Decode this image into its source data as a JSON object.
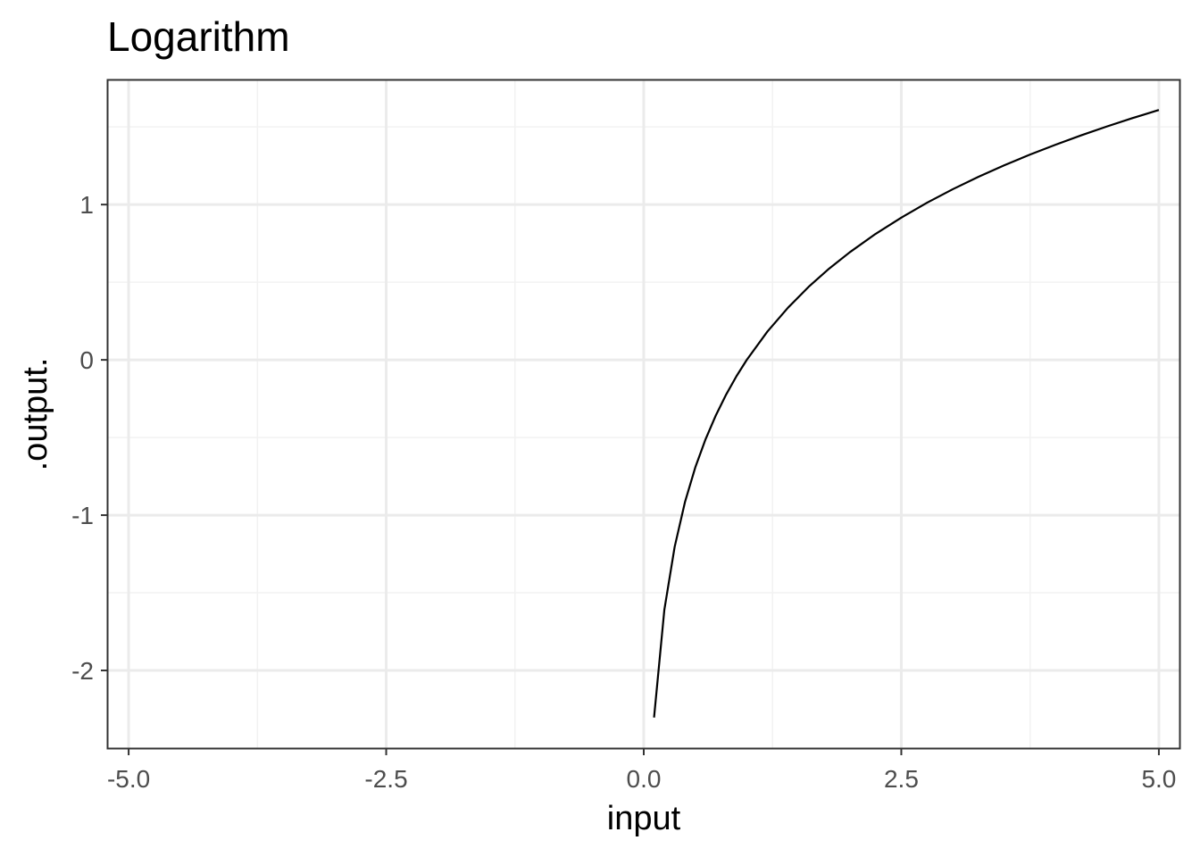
{
  "chart_data": {
    "type": "line",
    "title": "Logarithm",
    "xlabel": "input",
    "ylabel": ".output.",
    "xlim": [
      -5.2,
      5.2
    ],
    "ylim": [
      -2.5,
      1.8
    ],
    "x_ticks": [
      -5.0,
      -2.5,
      0.0,
      2.5,
      5.0
    ],
    "x_tick_labels": [
      "-5.0",
      "-2.5",
      "0.0",
      "2.5",
      "5.0"
    ],
    "x_minor_ticks": [
      -3.75,
      -1.25,
      1.25,
      3.75
    ],
    "y_ticks": [
      -2,
      -1,
      0,
      1
    ],
    "y_tick_labels": [
      "-2",
      "-1",
      "0",
      "1"
    ],
    "y_minor_ticks": [
      -1.5,
      -0.5,
      0.5,
      1.5
    ],
    "grid": true,
    "legend": "none",
    "series": [
      {
        "color": "#000000",
        "x": [
          0.1,
          0.2,
          0.3,
          0.4,
          0.5,
          0.6,
          0.7,
          0.8,
          0.9,
          1.0,
          1.2,
          1.4,
          1.6,
          1.8,
          2.0,
          2.25,
          2.5,
          2.75,
          3.0,
          3.25,
          3.5,
          3.75,
          4.0,
          4.25,
          4.5,
          4.75,
          5.0
        ],
        "y": [
          -2.303,
          -1.609,
          -1.204,
          -0.916,
          -0.693,
          -0.511,
          -0.357,
          -0.223,
          -0.105,
          0.0,
          0.182,
          0.336,
          0.47,
          0.588,
          0.693,
          0.811,
          0.916,
          1.012,
          1.099,
          1.179,
          1.253,
          1.322,
          1.386,
          1.447,
          1.504,
          1.558,
          1.609
        ]
      }
    ]
  },
  "colors": {
    "panel_border": "#333333",
    "grid_major": "#ebebeb",
    "grid_minor": "#f2f2f2",
    "tick_mark": "#333333",
    "tick_label": "#4d4d4d"
  }
}
